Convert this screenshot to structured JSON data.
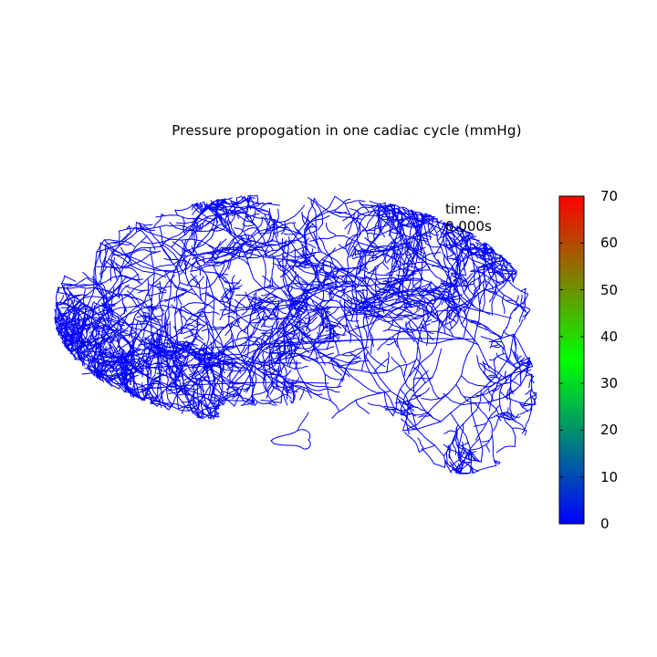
{
  "title": "Pressure propogation in one cadiac cycle (mmHg)",
  "time": {
    "label": "time:",
    "value": "0.000s"
  },
  "vessel_color": "#0000ff",
  "colorbar": {
    "min": 0,
    "max": 70,
    "ticks": [
      "0",
      "10",
      "20",
      "30",
      "40",
      "50",
      "60",
      "70"
    ],
    "gradient": [
      "#0000ff",
      "#00ff00",
      "#ff0000"
    ]
  }
}
